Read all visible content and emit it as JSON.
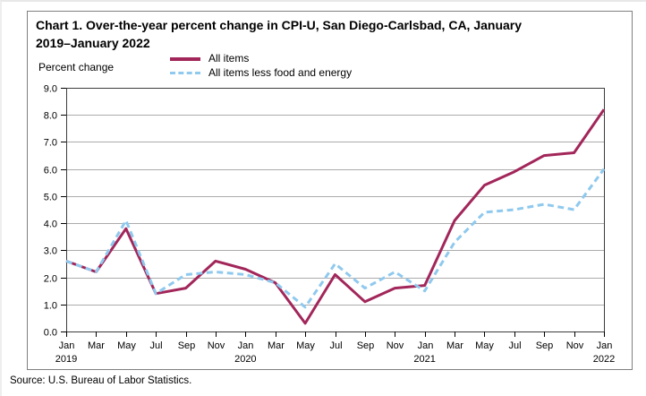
{
  "title": {
    "full": "Chart 1. Over-the-year percent change in CPI-U, San Diego-Carlsbad, CA, January 2019–January 2022",
    "line1": "Chart 1. Over-the-year percent change in CPI-U, San Diego-Carlsbad, CA, January",
    "line2": "2019–January 2022"
  },
  "axis": {
    "y_title": "Percent change"
  },
  "legend": {
    "items": [
      {
        "label": "All items"
      },
      {
        "label": "All items less food and energy"
      }
    ]
  },
  "source": "Source: U.S. Bureau of Labor Statistics.",
  "colors": {
    "all_items_line": "#A2265A",
    "core_line": "#8FC9EE",
    "gridline": "#ABABAB",
    "plot_border": "#3C3C3C",
    "axis_ticks": "#000000",
    "frame_border": "#808080",
    "text": "#000000"
  },
  "chart_data": {
    "type": "line",
    "title": "Chart 1. Over-the-year percent change in CPI-U, San Diego-Carlsbad, CA, January 2019–January 2022",
    "xlabel": "",
    "ylabel": "Percent change",
    "ylim": [
      0,
      9
    ],
    "ytick_interval": 1.0,
    "ytick_labels": [
      "9.0",
      "8.0",
      "7.0",
      "6.0",
      "5.0",
      "4.0",
      "3.0",
      "2.0",
      "1.0",
      "0.0"
    ],
    "grid": true,
    "legend_position": "top-center",
    "x_tick_labels": [
      "Jan",
      "Mar",
      "May",
      "Jul",
      "Sep",
      "Nov",
      "Jan",
      "Mar",
      "May",
      "Jul",
      "Sep",
      "Nov",
      "Jan",
      "Mar",
      "May",
      "Jul",
      "Sep",
      "Nov",
      "Jan"
    ],
    "x_year_labels": [
      {
        "tick_index": 0,
        "label": "2019"
      },
      {
        "tick_index": 6,
        "label": "2020"
      },
      {
        "tick_index": 12,
        "label": "2021"
      },
      {
        "tick_index": 18,
        "label": "2022"
      }
    ],
    "categories": [
      "Jan 2019",
      "Mar 2019",
      "May 2019",
      "Jul 2019",
      "Sep 2019",
      "Nov 2019",
      "Jan 2020",
      "Mar 2020",
      "May 2020",
      "Jul 2020",
      "Sep 2020",
      "Nov 2020",
      "Jan 2021",
      "Mar 2021",
      "May 2021",
      "Jul 2021",
      "Sep 2021",
      "Nov 2021",
      "Jan 2022"
    ],
    "series": [
      {
        "name": "All items",
        "line_style": "solid",
        "color": "#A2265A",
        "values": [
          2.6,
          2.2,
          3.8,
          1.4,
          1.6,
          2.6,
          2.3,
          1.8,
          0.3,
          2.1,
          1.1,
          1.6,
          1.7,
          4.1,
          5.4,
          5.9,
          6.5,
          6.6,
          8.2
        ]
      },
      {
        "name": "All items less food and energy",
        "line_style": "dashed",
        "color": "#8FC9EE",
        "values": [
          2.6,
          2.2,
          4.1,
          1.4,
          2.1,
          2.2,
          2.1,
          1.8,
          0.9,
          2.5,
          1.6,
          2.2,
          1.5,
          3.3,
          4.4,
          4.5,
          4.7,
          4.5,
          6.0
        ]
      }
    ]
  }
}
